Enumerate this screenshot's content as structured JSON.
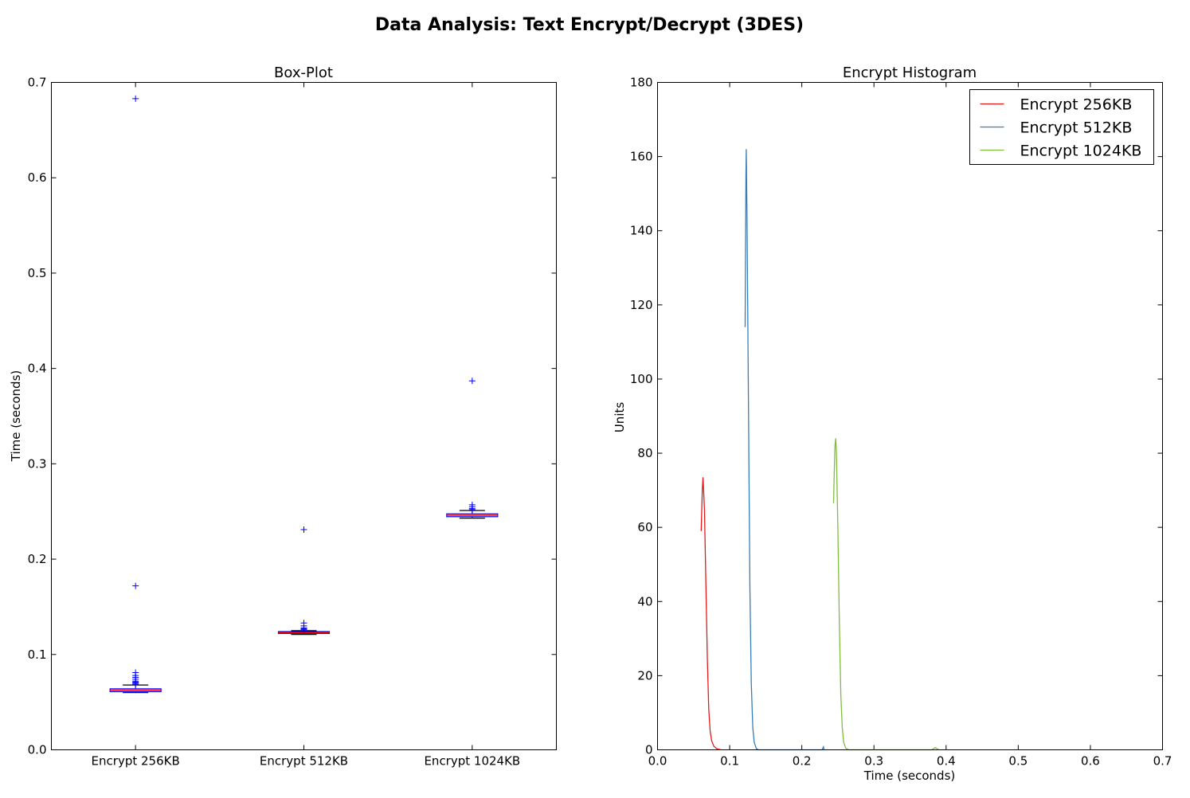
{
  "figure": {
    "title": "Data Analysis: Text Encrypt/Decrypt (3DES)"
  },
  "chart_data": [
    {
      "type": "box",
      "title": "Box-Plot",
      "xlabel": "",
      "ylabel": "Time (seconds)",
      "ylim": [
        0.0,
        0.7
      ],
      "yticks": [
        "0.0",
        "0.1",
        "0.2",
        "0.3",
        "0.4",
        "0.5",
        "0.6",
        "0.7"
      ],
      "grid": false,
      "categories": [
        "Encrypt 256KB",
        "Encrypt 512KB",
        "Encrypt 1024KB"
      ],
      "boxes": [
        {
          "whisker_low": 0.06,
          "q1": 0.061,
          "median": 0.0625,
          "q3": 0.064,
          "whisker_high": 0.068,
          "outliers": [
            0.683,
            0.172,
            0.081,
            0.078,
            0.076,
            0.074,
            0.072,
            0.071,
            0.07,
            0.069
          ]
        },
        {
          "whisker_low": 0.121,
          "q1": 0.122,
          "median": 0.123,
          "q3": 0.124,
          "whisker_high": 0.125,
          "outliers": [
            0.231,
            0.133,
            0.13,
            0.128,
            0.127,
            0.126
          ]
        },
        {
          "whisker_low": 0.243,
          "q1": 0.2445,
          "median": 0.246,
          "q3": 0.2475,
          "whisker_high": 0.251,
          "outliers": [
            0.387,
            0.257,
            0.255,
            0.253,
            0.252
          ]
        }
      ],
      "colors": {
        "box": "#0000ff",
        "median": "#ff0000",
        "whisker": "#000000",
        "outlier": "#0000ff"
      }
    },
    {
      "type": "line",
      "title": "Encrypt Histogram",
      "xlabel": "Time (seconds)",
      "ylabel": "Units",
      "xlim": [
        0.0,
        0.7
      ],
      "ylim": [
        0,
        180
      ],
      "xticks": [
        "0.0",
        "0.1",
        "0.2",
        "0.3",
        "0.4",
        "0.5",
        "0.6",
        "0.7"
      ],
      "yticks": [
        "0",
        "20",
        "40",
        "60",
        "80",
        "100",
        "120",
        "140",
        "160",
        "180"
      ],
      "grid": false,
      "legend_position": "top-right",
      "series": [
        {
          "name": "Encrypt 256KB",
          "color": "#e41a1c",
          "points": [
            [
              0.0605,
              59
            ],
            [
              0.062,
              70
            ],
            [
              0.063,
              73.5
            ],
            [
              0.065,
              65
            ],
            [
              0.067,
              45
            ],
            [
              0.069,
              25
            ],
            [
              0.071,
              11
            ],
            [
              0.073,
              5
            ],
            [
              0.075,
              2.5
            ],
            [
              0.078,
              1
            ],
            [
              0.082,
              0.3
            ],
            [
              0.088,
              0
            ]
          ]
        },
        {
          "name": "Encrypt 512KB",
          "color": "#377eb8",
          "points": [
            [
              0.1215,
              114
            ],
            [
              0.122,
              135
            ],
            [
              0.1225,
              155
            ],
            [
              0.123,
              162
            ],
            [
              0.124,
              145
            ],
            [
              0.126,
              95
            ],
            [
              0.128,
              45
            ],
            [
              0.13,
              18
            ],
            [
              0.132,
              6
            ],
            [
              0.134,
              2
            ],
            [
              0.137,
              0.3
            ],
            [
              0.14,
              0
            ],
            [
              0.228,
              0
            ],
            [
              0.23,
              0.8
            ],
            [
              0.231,
              0
            ]
          ]
        },
        {
          "name": "Encrypt 1024KB",
          "color": "#7fbc41",
          "points": [
            [
              0.244,
              66.5
            ],
            [
              0.245,
              75
            ],
            [
              0.246,
              82
            ],
            [
              0.247,
              84
            ],
            [
              0.248,
              80
            ],
            [
              0.25,
              60
            ],
            [
              0.252,
              35
            ],
            [
              0.254,
              15
            ],
            [
              0.256,
              6
            ],
            [
              0.258,
              2
            ],
            [
              0.261,
              0.4
            ],
            [
              0.265,
              0
            ],
            [
              0.38,
              0
            ],
            [
              0.385,
              0.6
            ],
            [
              0.39,
              0
            ]
          ]
        }
      ]
    }
  ]
}
